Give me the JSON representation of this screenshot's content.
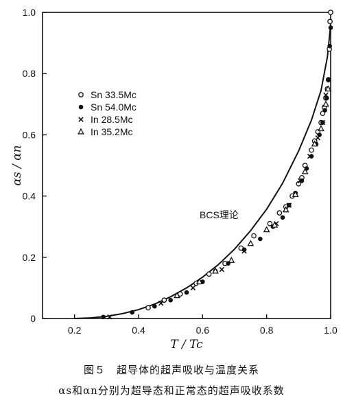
{
  "caption": {
    "line1": "图５　超导体的超声吸收与温度关系",
    "line2": "αs和αn分别为超导态和正常态的超声吸收系数"
  },
  "chart_data": {
    "type": "scatter",
    "xlabel": "T / Tc",
    "ylabel": "αs / αn",
    "xlim": [
      0.1,
      1.0
    ],
    "ylim": [
      0,
      1.0
    ],
    "xticks": [
      "0.2",
      "0.4",
      "0.6",
      "0.8",
      "1.0"
    ],
    "yticks": [
      "0",
      "0.2",
      "0.4",
      "0.6",
      "0.8",
      "1.0"
    ],
    "grid": false,
    "legend_position": "top-left",
    "annotation": "BCS理论",
    "theory_curve": {
      "label": "BCS理论",
      "x": [
        0.2,
        0.25,
        0.3,
        0.35,
        0.4,
        0.45,
        0.5,
        0.55,
        0.6,
        0.65,
        0.7,
        0.75,
        0.8,
        0.85,
        0.9,
        0.94,
        0.97,
        0.99,
        1.0
      ],
      "y": [
        0.0,
        0.002,
        0.007,
        0.016,
        0.029,
        0.047,
        0.071,
        0.1,
        0.135,
        0.177,
        0.227,
        0.287,
        0.357,
        0.442,
        0.547,
        0.648,
        0.745,
        0.855,
        0.96
      ]
    },
    "series": [
      {
        "name": "Sn 33.5Mc",
        "marker": "open-circle",
        "points": [
          [
            0.43,
            0.035
          ],
          [
            0.48,
            0.06
          ],
          [
            0.53,
            0.08
          ],
          [
            0.58,
            0.115
          ],
          [
            0.62,
            0.145
          ],
          [
            0.67,
            0.18
          ],
          [
            0.72,
            0.23
          ],
          [
            0.76,
            0.27
          ],
          [
            0.81,
            0.31
          ],
          [
            0.84,
            0.345
          ],
          [
            0.86,
            0.365
          ],
          [
            0.88,
            0.4
          ],
          [
            0.9,
            0.44
          ],
          [
            0.91,
            0.46
          ],
          [
            0.92,
            0.5
          ],
          [
            0.94,
            0.55
          ],
          [
            0.95,
            0.58
          ],
          [
            0.96,
            0.61
          ],
          [
            0.97,
            0.64
          ],
          [
            0.975,
            0.67
          ],
          [
            0.98,
            0.69
          ],
          [
            0.985,
            0.72
          ],
          [
            0.99,
            0.75
          ],
          [
            0.993,
            0.78
          ],
          [
            0.996,
            0.88
          ],
          [
            0.998,
            0.97
          ],
          [
            1.0,
            1.0
          ]
        ]
      },
      {
        "name": "Sn 54.0Mc",
        "marker": "filled-circle",
        "points": [
          [
            0.29,
            0.005
          ],
          [
            0.38,
            0.02
          ],
          [
            0.45,
            0.04
          ],
          [
            0.5,
            0.06
          ],
          [
            0.55,
            0.085
          ],
          [
            0.6,
            0.12
          ],
          [
            0.64,
            0.155
          ],
          [
            0.68,
            0.18
          ],
          [
            0.73,
            0.225
          ],
          [
            0.78,
            0.26
          ],
          [
            0.82,
            0.3
          ],
          [
            0.85,
            0.33
          ],
          [
            0.87,
            0.37
          ],
          [
            0.89,
            0.41
          ],
          [
            0.91,
            0.45
          ],
          [
            0.925,
            0.49
          ],
          [
            0.94,
            0.53
          ],
          [
            0.955,
            0.57
          ],
          [
            0.965,
            0.6
          ],
          [
            0.975,
            0.64
          ],
          [
            0.982,
            0.68
          ],
          [
            0.988,
            0.72
          ],
          [
            0.993,
            0.78
          ],
          [
            0.997,
            0.89
          ],
          [
            1.0,
            0.95
          ]
        ]
      },
      {
        "name": "In 28.5Mc",
        "marker": "cross",
        "points": [
          [
            0.31,
            0.005
          ],
          [
            0.47,
            0.05
          ],
          [
            0.57,
            0.1
          ],
          [
            0.66,
            0.16
          ],
          [
            0.73,
            0.22
          ],
          [
            0.83,
            0.31
          ],
          [
            0.87,
            0.37
          ],
          [
            0.905,
            0.45
          ],
          [
            0.935,
            0.53
          ],
          [
            0.96,
            0.59
          ],
          [
            0.975,
            0.64
          ],
          [
            0.985,
            0.73
          ]
        ]
      },
      {
        "name": "In 35.2Mc",
        "marker": "open-triangle",
        "points": [
          [
            0.52,
            0.075
          ],
          [
            0.59,
            0.12
          ],
          [
            0.64,
            0.155
          ],
          [
            0.69,
            0.19
          ],
          [
            0.75,
            0.245
          ],
          [
            0.8,
            0.29
          ],
          [
            0.825,
            0.305
          ],
          [
            0.86,
            0.355
          ],
          [
            0.89,
            0.405
          ],
          [
            0.92,
            0.48
          ],
          [
            0.95,
            0.57
          ],
          [
            0.97,
            0.62
          ],
          [
            0.985,
            0.7
          ],
          [
            0.992,
            0.75
          ]
        ]
      }
    ]
  }
}
